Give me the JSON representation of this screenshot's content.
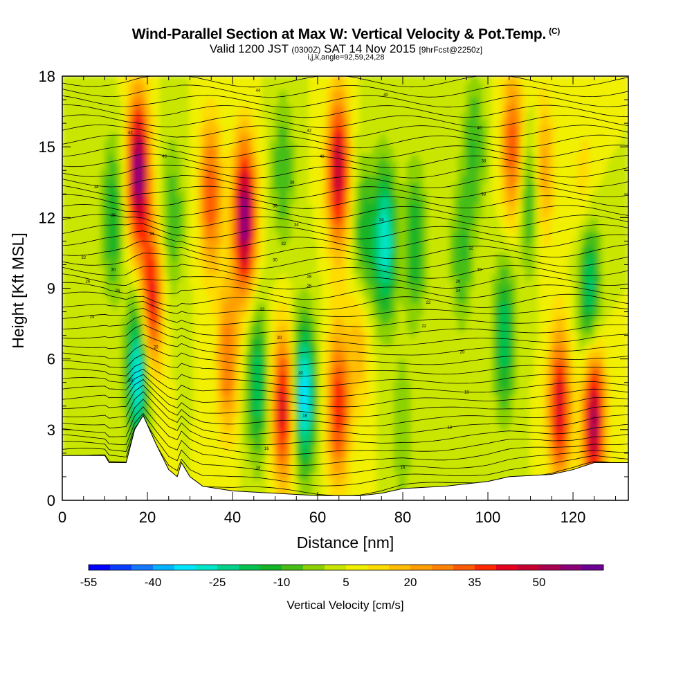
{
  "title": "Wind-Parallel Section at Max W: Vertical Velocity & Pot.Temp.",
  "title_mark": "(C)",
  "subtitle_pre": "Valid 1200 JST",
  "subtitle_mid": "(0300Z)",
  "subtitle_date": "SAT 14 Nov 2015",
  "subtitle_fcst": "[9hrFcst@2250z]",
  "subtitle2": "i,j,k,angle=92,59,24,28",
  "chart_data": {
    "type": "heatmap",
    "title": "Wind-Parallel Section at Max W: Vertical Velocity & Pot.Temp.",
    "xlabel": "Distance [nm]",
    "ylabel": "Height [Kft MSL]",
    "xlim": [
      0,
      133
    ],
    "ylim": [
      0,
      18
    ],
    "x_ticks": [
      0,
      20,
      40,
      60,
      80,
      100,
      120
    ],
    "y_ticks": [
      0,
      3,
      6,
      9,
      12,
      15,
      18
    ],
    "colorbar": {
      "label": "Vertical Velocity [cm/s]",
      "tick_labels": [
        "-55",
        "-40",
        "-25",
        "-10",
        "5",
        "20",
        "35",
        "50"
      ],
      "tick_values": [
        -55,
        -40,
        -25,
        -10,
        5,
        20,
        35,
        50
      ],
      "min": -55,
      "max": 65,
      "step": 5,
      "colors": [
        "#0000ff",
        "#0a3cff",
        "#1478ff",
        "#00b4ff",
        "#00e6ff",
        "#00e6c8",
        "#00d28c",
        "#00c350",
        "#14b428",
        "#46be14",
        "#8cd200",
        "#c8e600",
        "#f0f000",
        "#ffdc00",
        "#ffbe00",
        "#ffa000",
        "#ff8200",
        "#ff5a00",
        "#ff2800",
        "#e6001e",
        "#c80032",
        "#aa0050",
        "#8c0078",
        "#6e0096"
      ]
    },
    "terrain_height_kft": [
      {
        "x": 0,
        "h": 1.9
      },
      {
        "x": 10,
        "h": 1.9
      },
      {
        "x": 11,
        "h": 1.6
      },
      {
        "x": 15,
        "h": 1.6
      },
      {
        "x": 17,
        "h": 3.0
      },
      {
        "x": 19,
        "h": 3.6
      },
      {
        "x": 22,
        "h": 2.4
      },
      {
        "x": 25,
        "h": 1.3
      },
      {
        "x": 27,
        "h": 1.0
      },
      {
        "x": 28,
        "h": 1.6
      },
      {
        "x": 30,
        "h": 1.0
      },
      {
        "x": 33,
        "h": 0.6
      },
      {
        "x": 40,
        "h": 0.4
      },
      {
        "x": 50,
        "h": 0.3
      },
      {
        "x": 60,
        "h": 0.2
      },
      {
        "x": 70,
        "h": 0.2
      },
      {
        "x": 75,
        "h": 0.3
      },
      {
        "x": 80,
        "h": 0.5
      },
      {
        "x": 90,
        "h": 0.6
      },
      {
        "x": 100,
        "h": 0.8
      },
      {
        "x": 105,
        "h": 1.0
      },
      {
        "x": 115,
        "h": 1.1
      },
      {
        "x": 120,
        "h": 1.3
      },
      {
        "x": 125,
        "h": 1.6
      },
      {
        "x": 133,
        "h": 1.6
      }
    ],
    "velocity_features": [
      {
        "x": 18,
        "z": 14,
        "w": 60
      },
      {
        "x": 21,
        "z": 8.5,
        "w": 45
      },
      {
        "x": 18,
        "z": 5.5,
        "w": -35
      },
      {
        "x": 12,
        "z": 12,
        "w": -15
      },
      {
        "x": 26,
        "z": 12,
        "w": -10
      },
      {
        "x": 35,
        "z": 13,
        "w": 35
      },
      {
        "x": 43,
        "z": 12,
        "w": 60
      },
      {
        "x": 39,
        "z": 6,
        "w": 30
      },
      {
        "x": 46,
        "z": 5,
        "w": -20
      },
      {
        "x": 52,
        "z": 4,
        "w": 45
      },
      {
        "x": 57,
        "z": 4.5,
        "w": -35
      },
      {
        "x": 52,
        "z": 14,
        "w": -10
      },
      {
        "x": 65,
        "z": 14,
        "w": 50
      },
      {
        "x": 65,
        "z": 4,
        "w": 40
      },
      {
        "x": 71,
        "z": 11,
        "w": -15
      },
      {
        "x": 76,
        "z": 11,
        "w": -30
      },
      {
        "x": 83,
        "z": 11,
        "w": -15
      },
      {
        "x": 94,
        "z": 10.5,
        "w": -10
      },
      {
        "x": 70,
        "z": 7,
        "w": 20
      },
      {
        "x": 97,
        "z": 15,
        "w": -10
      },
      {
        "x": 106,
        "z": 15,
        "w": 35
      },
      {
        "x": 104,
        "z": 7,
        "w": -20
      },
      {
        "x": 110,
        "z": 13,
        "w": -15
      },
      {
        "x": 113,
        "z": 14,
        "w": 25
      },
      {
        "x": 117,
        "z": 4,
        "w": 45
      },
      {
        "x": 125,
        "z": 3.5,
        "w": 55
      },
      {
        "x": 124,
        "z": 9,
        "w": -25
      },
      {
        "x": 123,
        "z": 13,
        "w": 15
      },
      {
        "x": 80,
        "z": 3,
        "w": -5
      }
    ],
    "pot_temp_contour_labels": [
      {
        "x": 46,
        "z": 17.4,
        "text": "44"
      },
      {
        "x": 16,
        "z": 15.6,
        "text": "42"
      },
      {
        "x": 58,
        "z": 15.7,
        "text": "42"
      },
      {
        "x": 76,
        "z": 17.2,
        "text": "40"
      },
      {
        "x": 98,
        "z": 15.8,
        "text": "40"
      },
      {
        "x": 24,
        "z": 14.6,
        "text": "40"
      },
      {
        "x": 61,
        "z": 14.6,
        "text": "40"
      },
      {
        "x": 99,
        "z": 14.4,
        "text": "38"
      },
      {
        "x": 8,
        "z": 13.3,
        "text": "38"
      },
      {
        "x": 54,
        "z": 13.5,
        "text": "38"
      },
      {
        "x": 99,
        "z": 13.0,
        "text": "38"
      },
      {
        "x": 12,
        "z": 12.1,
        "text": "36"
      },
      {
        "x": 50,
        "z": 12.5,
        "text": "36"
      },
      {
        "x": 55,
        "z": 11.7,
        "text": "34"
      },
      {
        "x": 75,
        "z": 11.9,
        "text": "34"
      },
      {
        "x": 21,
        "z": 11.3,
        "text": "34"
      },
      {
        "x": 52,
        "z": 10.9,
        "text": "32"
      },
      {
        "x": 96,
        "z": 10.7,
        "text": "32"
      },
      {
        "x": 5,
        "z": 10.3,
        "text": "32"
      },
      {
        "x": 50,
        "z": 10.2,
        "text": "30"
      },
      {
        "x": 12,
        "z": 9.8,
        "text": "30"
      },
      {
        "x": 98,
        "z": 9.8,
        "text": "30"
      },
      {
        "x": 58,
        "z": 9.5,
        "text": "28"
      },
      {
        "x": 93,
        "z": 9.3,
        "text": "26"
      },
      {
        "x": 6,
        "z": 9.3,
        "text": "26"
      },
      {
        "x": 58,
        "z": 9.1,
        "text": "26"
      },
      {
        "x": 93,
        "z": 8.9,
        "text": "24"
      },
      {
        "x": 13,
        "z": 8.9,
        "text": "26"
      },
      {
        "x": 86,
        "z": 8.4,
        "text": "22"
      },
      {
        "x": 47,
        "z": 8.1,
        "text": "22"
      },
      {
        "x": 7,
        "z": 7.8,
        "text": "24"
      },
      {
        "x": 85,
        "z": 7.4,
        "text": "22"
      },
      {
        "x": 51,
        "z": 6.9,
        "text": "20"
      },
      {
        "x": 22,
        "z": 6.5,
        "text": "20"
      },
      {
        "x": 94,
        "z": 6.3,
        "text": "20"
      },
      {
        "x": 56,
        "z": 5.4,
        "text": "20"
      },
      {
        "x": 16,
        "z": 5.1,
        "text": "20"
      },
      {
        "x": 95,
        "z": 4.6,
        "text": "18"
      },
      {
        "x": 57,
        "z": 3.6,
        "text": "18"
      },
      {
        "x": 91,
        "z": 3.1,
        "text": "18"
      },
      {
        "x": 48,
        "z": 2.2,
        "text": "16"
      },
      {
        "x": 46,
        "z": 1.4,
        "text": "14"
      },
      {
        "x": 80,
        "z": 1.4,
        "text": "16"
      }
    ]
  }
}
